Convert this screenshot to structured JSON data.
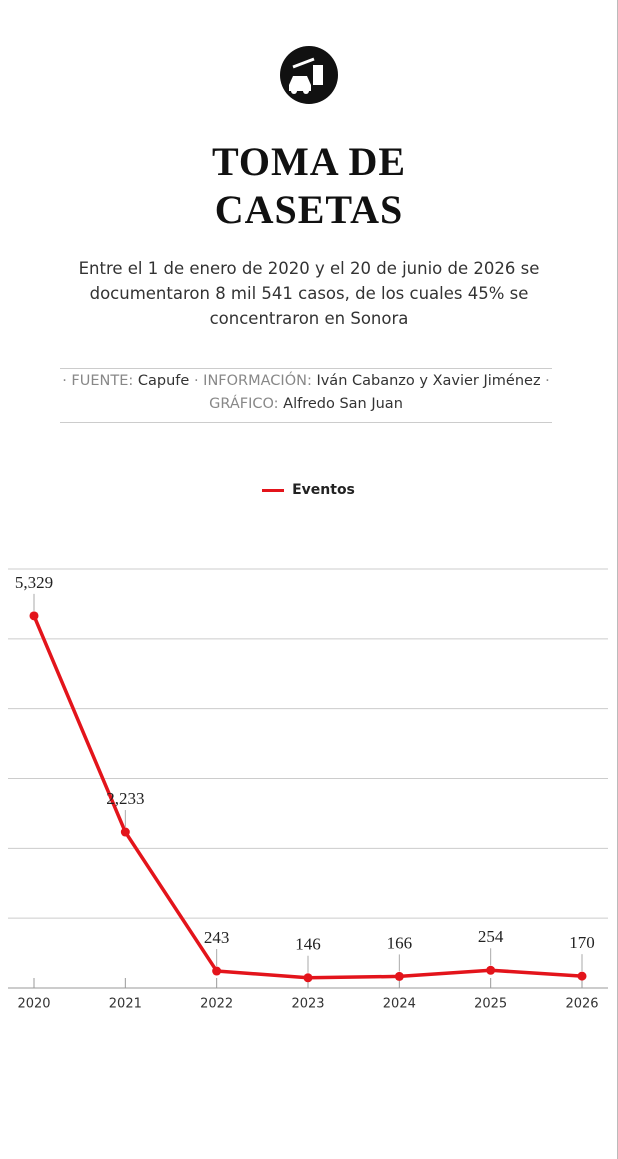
{
  "chart_data": {
    "type": "line",
    "title": "TOMA DE CASETAS",
    "subtitle": "Entre el 1 de enero de 2020 y el 20 de junio de 2026 se documentaron 8 mil 541 casos, de los cuales 45% se concentraron en Sonora",
    "credits": [
      {
        "label": "· FUENTE:",
        "value": "Capufe"
      },
      {
        "label": "· INFORMACIÓN:",
        "value": "Iván Cabanzo y Xavier Jiménez"
      },
      {
        "label": "· GRÁFICO:",
        "value": "Alfredo San Juan"
      }
    ],
    "categories": [
      "2020",
      "2021",
      "2022",
      "2023",
      "2024",
      "2025",
      "2026"
    ],
    "series": [
      {
        "name": "Eventos",
        "color": "#e3141b",
        "values": [
          5329,
          2233,
          243,
          146,
          166,
          254,
          170
        ],
        "value_labels": [
          "5,329",
          "2,233",
          "243",
          "146",
          "166",
          "254",
          "170"
        ]
      }
    ],
    "ylim": [
      0,
      6000
    ],
    "yticks": [
      0,
      1000,
      2000,
      3000,
      4000,
      5000,
      6000
    ],
    "grid": true
  }
}
